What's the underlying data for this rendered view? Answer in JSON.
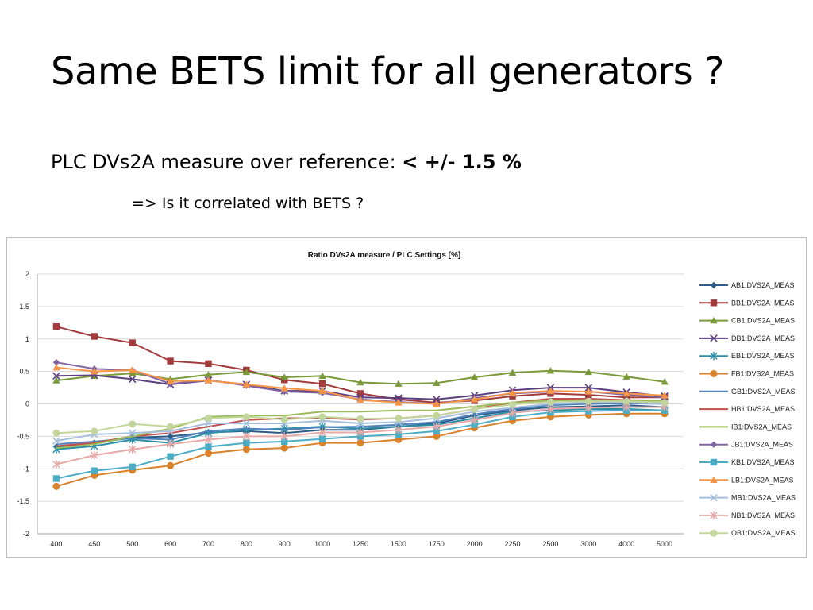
{
  "slide": {
    "title": "Same BETS limit for all generators ?",
    "subtitle_prefix": "PLC DVs2A measure over reference: ",
    "subtitle_bold": "< +/- 1.5 %",
    "subsub": "=> Is it correlated with BETS ?"
  },
  "chart_data": {
    "type": "line",
    "title": "Ratio DVs2A measure / PLC Settings [%]",
    "categories": [
      "400",
      "450",
      "500",
      "600",
      "700",
      "800",
      "900",
      "1000",
      "1250",
      "1500",
      "1750",
      "2000",
      "2250",
      "2500",
      "3000",
      "4000",
      "5000"
    ],
    "ylim": [
      -2,
      2
    ],
    "yticks": [
      "2",
      "1.5",
      "1",
      "0.5",
      "0",
      "-0.5",
      "-1",
      "-1.5",
      "-2"
    ],
    "grid": true,
    "legend_position": "right",
    "series": [
      {
        "name": "AB1:DVS2A_MEAS",
        "color": "#2E5C8A",
        "marker": "diamond",
        "values": [
          -0.66,
          -0.6,
          -0.52,
          -0.5,
          -0.44,
          -0.42,
          -0.45,
          -0.4,
          -0.4,
          -0.35,
          -0.3,
          -0.18,
          -0.1,
          -0.05,
          -0.04,
          -0.02,
          -0.05
        ]
      },
      {
        "name": "BB1:DVS2A_MEAS",
        "color": "#A23B3B",
        "marker": "square",
        "values": [
          1.19,
          1.04,
          0.94,
          0.66,
          0.62,
          0.52,
          0.37,
          0.31,
          0.16,
          0.07,
          0.02,
          0.05,
          0.12,
          0.16,
          0.14,
          0.1,
          0.1
        ]
      },
      {
        "name": "CB1:DVS2A_MEAS",
        "color": "#7A9A3A",
        "marker": "triangle",
        "values": [
          0.36,
          0.43,
          0.47,
          0.38,
          0.45,
          0.49,
          0.41,
          0.43,
          0.33,
          0.31,
          0.32,
          0.41,
          0.48,
          0.51,
          0.49,
          0.42,
          0.34
        ]
      },
      {
        "name": "DB1:DVS2A_MEAS",
        "color": "#5B3F7E",
        "marker": "x",
        "values": [
          0.43,
          0.44,
          0.38,
          0.3,
          0.36,
          0.3,
          0.2,
          0.2,
          0.1,
          0.09,
          0.07,
          0.13,
          0.21,
          0.25,
          0.25,
          0.18,
          0.12
        ]
      },
      {
        "name": "EB1:DVS2A_MEAS",
        "color": "#2A8FA6",
        "marker": "star",
        "values": [
          -0.7,
          -0.65,
          -0.55,
          -0.6,
          -0.45,
          -0.4,
          -0.38,
          -0.35,
          -0.38,
          -0.35,
          -0.32,
          -0.22,
          -0.12,
          -0.1,
          -0.08,
          -0.08,
          -0.1
        ]
      },
      {
        "name": "FB1:DVS2A_MEAS",
        "color": "#D9822B",
        "marker": "circle",
        "values": [
          -1.27,
          -1.1,
          -1.02,
          -0.95,
          -0.76,
          -0.7,
          -0.68,
          -0.6,
          -0.6,
          -0.55,
          -0.5,
          -0.37,
          -0.26,
          -0.2,
          -0.17,
          -0.15,
          -0.15
        ]
      },
      {
        "name": "GB1:DVS2A_MEAS",
        "color": "#4F81BD",
        "marker": "none",
        "values": [
          -0.62,
          -0.58,
          -0.53,
          -0.55,
          -0.42,
          -0.38,
          -0.4,
          -0.36,
          -0.35,
          -0.32,
          -0.28,
          -0.16,
          -0.08,
          -0.02,
          0,
          0.01,
          0
        ]
      },
      {
        "name": "HB1:DVS2A_MEAS",
        "color": "#C0504D",
        "marker": "none",
        "values": [
          -0.65,
          -0.6,
          -0.5,
          -0.45,
          -0.35,
          -0.25,
          -0.22,
          -0.22,
          -0.24,
          -0.22,
          -0.18,
          -0.08,
          0.02,
          0.08,
          0.08,
          0.06,
          0.05
        ]
      },
      {
        "name": "IB1:DVS2A_MEAS",
        "color": "#9BBB59",
        "marker": "none",
        "values": [
          -0.68,
          -0.62,
          -0.5,
          -0.38,
          -0.2,
          -0.18,
          -0.18,
          -0.12,
          -0.12,
          -0.1,
          -0.1,
          -0.04,
          0.02,
          0.05,
          0.06,
          0.05,
          0.05
        ]
      },
      {
        "name": "JB1:DVS2A_MEAS",
        "color": "#8064A2",
        "marker": "diamond",
        "values": [
          0.64,
          0.54,
          0.52,
          0.31,
          0.37,
          0.28,
          0.19,
          0.17,
          0.07,
          0.03,
          0,
          0.09,
          0.16,
          0.19,
          0.19,
          0.14,
          0.1
        ]
      },
      {
        "name": "KB1:DVS2A_MEAS",
        "color": "#4BACC6",
        "marker": "square",
        "values": [
          -1.15,
          -1.03,
          -0.97,
          -0.81,
          -0.66,
          -0.6,
          -0.58,
          -0.54,
          -0.5,
          -0.47,
          -0.42,
          -0.32,
          -0.2,
          -0.13,
          -0.11,
          -0.1,
          -0.1
        ]
      },
      {
        "name": "LB1:DVS2A_MEAS",
        "color": "#F79646",
        "marker": "triangle",
        "values": [
          0.56,
          0.5,
          0.52,
          0.35,
          0.36,
          0.3,
          0.24,
          0.2,
          0.06,
          0.02,
          0,
          0.07,
          0.17,
          0.2,
          0.19,
          0.16,
          0.13
        ]
      },
      {
        "name": "MB1:DVS2A_MEAS",
        "color": "#A6BFDD",
        "marker": "x",
        "values": [
          -0.57,
          -0.47,
          -0.45,
          -0.42,
          -0.3,
          -0.3,
          -0.3,
          -0.26,
          -0.3,
          -0.28,
          -0.22,
          -0.12,
          -0.06,
          0,
          0.02,
          0.02,
          0
        ]
      },
      {
        "name": "NB1:DVS2A_MEAS",
        "color": "#E6A9A7",
        "marker": "star",
        "values": [
          -0.93,
          -0.79,
          -0.7,
          -0.62,
          -0.55,
          -0.5,
          -0.5,
          -0.44,
          -0.44,
          -0.4,
          -0.35,
          -0.25,
          -0.14,
          -0.08,
          -0.06,
          -0.05,
          -0.05
        ]
      },
      {
        "name": "OB1:DVS2A_MEAS",
        "color": "#C3D69B",
        "marker": "circle",
        "values": [
          -0.45,
          -0.42,
          -0.31,
          -0.35,
          -0.22,
          -0.2,
          -0.24,
          -0.2,
          -0.23,
          -0.22,
          -0.18,
          -0.08,
          -0.01,
          0.03,
          0.04,
          0.04,
          0.02
        ]
      }
    ]
  }
}
